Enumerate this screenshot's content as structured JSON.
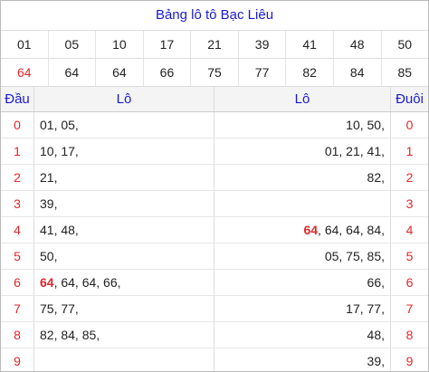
{
  "header": {
    "title": "Bảng lô tô Bạc Liêu"
  },
  "numbers": {
    "rows": [
      [
        "01",
        "05",
        "10",
        "17",
        "21",
        "39",
        "41",
        "48",
        "50"
      ],
      [
        "64",
        "64",
        "64",
        "66",
        "75",
        "77",
        "82",
        "84",
        "85"
      ]
    ],
    "highlight": [
      {
        "row": 1,
        "col": 0
      }
    ]
  },
  "table": {
    "columns": [
      "Đầu",
      "Lô",
      "Lô",
      "Đuôi"
    ],
    "rows": [
      {
        "dau": "0",
        "left": "01, 05,",
        "right": "10, 50,",
        "duoi": "0"
      },
      {
        "dau": "1",
        "left": "10, 17,",
        "right": "01, 21, 41,",
        "duoi": "1"
      },
      {
        "dau": "2",
        "left": "21,",
        "right": "82,",
        "duoi": "2"
      },
      {
        "dau": "3",
        "left": "39,",
        "right": "",
        "duoi": "3"
      },
      {
        "dau": "4",
        "left": "41, 48,",
        "right_hot": "64",
        "right": ", 64, 64, 84,",
        "duoi": "4"
      },
      {
        "dau": "5",
        "left": "50,",
        "right": "05, 75, 85,",
        "duoi": "5"
      },
      {
        "dau": "6",
        "left_hot": "64",
        "left": ", 64, 64, 66,",
        "right": "66,",
        "duoi": "6"
      },
      {
        "dau": "7",
        "left": "75, 77,",
        "right": "17, 77,",
        "duoi": "7"
      },
      {
        "dau": "8",
        "left": "82, 84, 85,",
        "right": "48,",
        "duoi": "8"
      },
      {
        "dau": "9",
        "left": "",
        "right": "39,",
        "duoi": "9"
      }
    ]
  }
}
